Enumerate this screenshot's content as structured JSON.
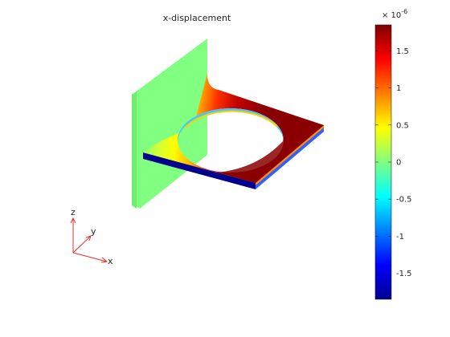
{
  "chart_data": {
    "type": "heatmap",
    "title": "x-displacement",
    "colormap": "jet",
    "colorbar": {
      "exponent_label": "× 10",
      "exponent_power": "-6",
      "range": [
        -1.85,
        1.85
      ],
      "ticks": [
        1.5,
        1,
        0.5,
        0,
        -0.5,
        -1,
        -1.5
      ],
      "tick_labels": [
        "1.5",
        "1",
        "0.5",
        "0",
        "-0.5",
        "-1",
        "-1.5"
      ]
    },
    "field_description_values": {
      "wall_value": 0,
      "plate_top_max": 1.8,
      "plate_edge_min": -1.8
    },
    "triad": {
      "x": "x",
      "y": "y",
      "z": "z"
    },
    "colors": {
      "wall": "#80ff80",
      "triad": "#e8302a"
    }
  }
}
